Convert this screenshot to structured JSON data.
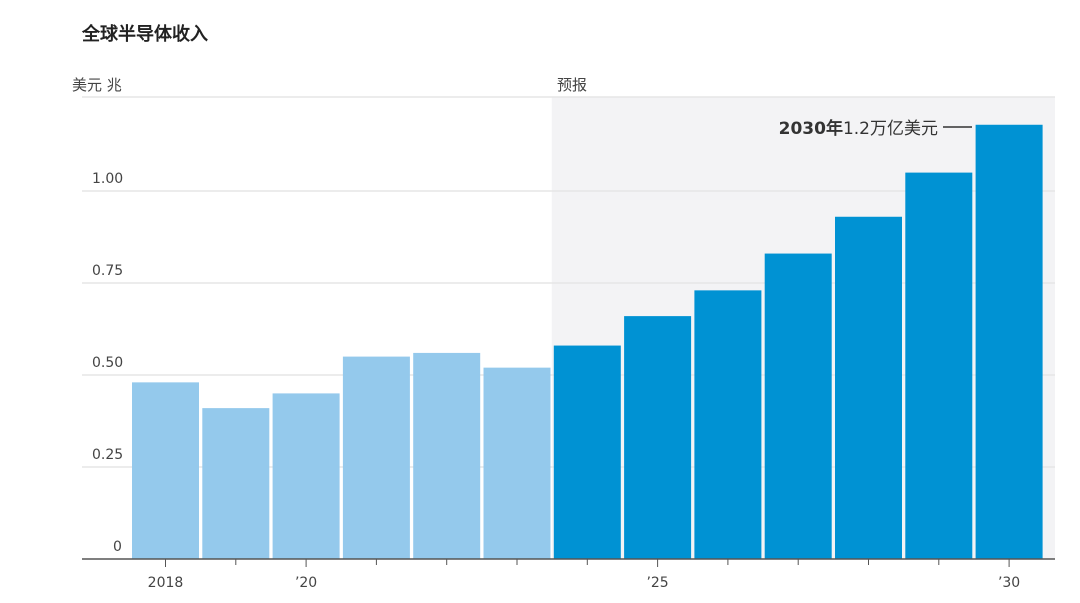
{
  "chart_data": {
    "type": "bar",
    "title": "全球半导体收入",
    "ylabel": "美元 兆",
    "forecast_label": "预报",
    "annotation": {
      "bold": "2030年",
      "text": "1.2万亿美元"
    },
    "categories": [
      "2018",
      "2019",
      "2020",
      "2021",
      "2022",
      "2023",
      "2024",
      "2025",
      "2026",
      "2027",
      "2028",
      "2029",
      "2030"
    ],
    "values": [
      0.48,
      0.41,
      0.45,
      0.55,
      0.56,
      0.52,
      0.58,
      0.66,
      0.73,
      0.83,
      0.93,
      1.05,
      1.18
    ],
    "forecast_from": "2024",
    "ylim": [
      0,
      1.26
    ],
    "yticks": [
      {
        "v": 0,
        "label": "0"
      },
      {
        "v": 0.25,
        "label": "0.25"
      },
      {
        "v": 0.5,
        "label": "0.50"
      },
      {
        "v": 0.75,
        "label": "0.75"
      },
      {
        "v": 1.0,
        "label": "1.00"
      }
    ],
    "xticks": [
      {
        "cat": "2018",
        "label": "2018"
      },
      {
        "cat": "2020",
        "label": "’20"
      },
      {
        "cat": "2025",
        "label": "’25"
      },
      {
        "cat": "2030",
        "label": "’30"
      }
    ],
    "colors": {
      "actual": "#94c9ec",
      "forecast": "#0092d3",
      "shade": "#f3f3f5",
      "grid": "#e6e6e6",
      "axis": "#555555"
    }
  }
}
